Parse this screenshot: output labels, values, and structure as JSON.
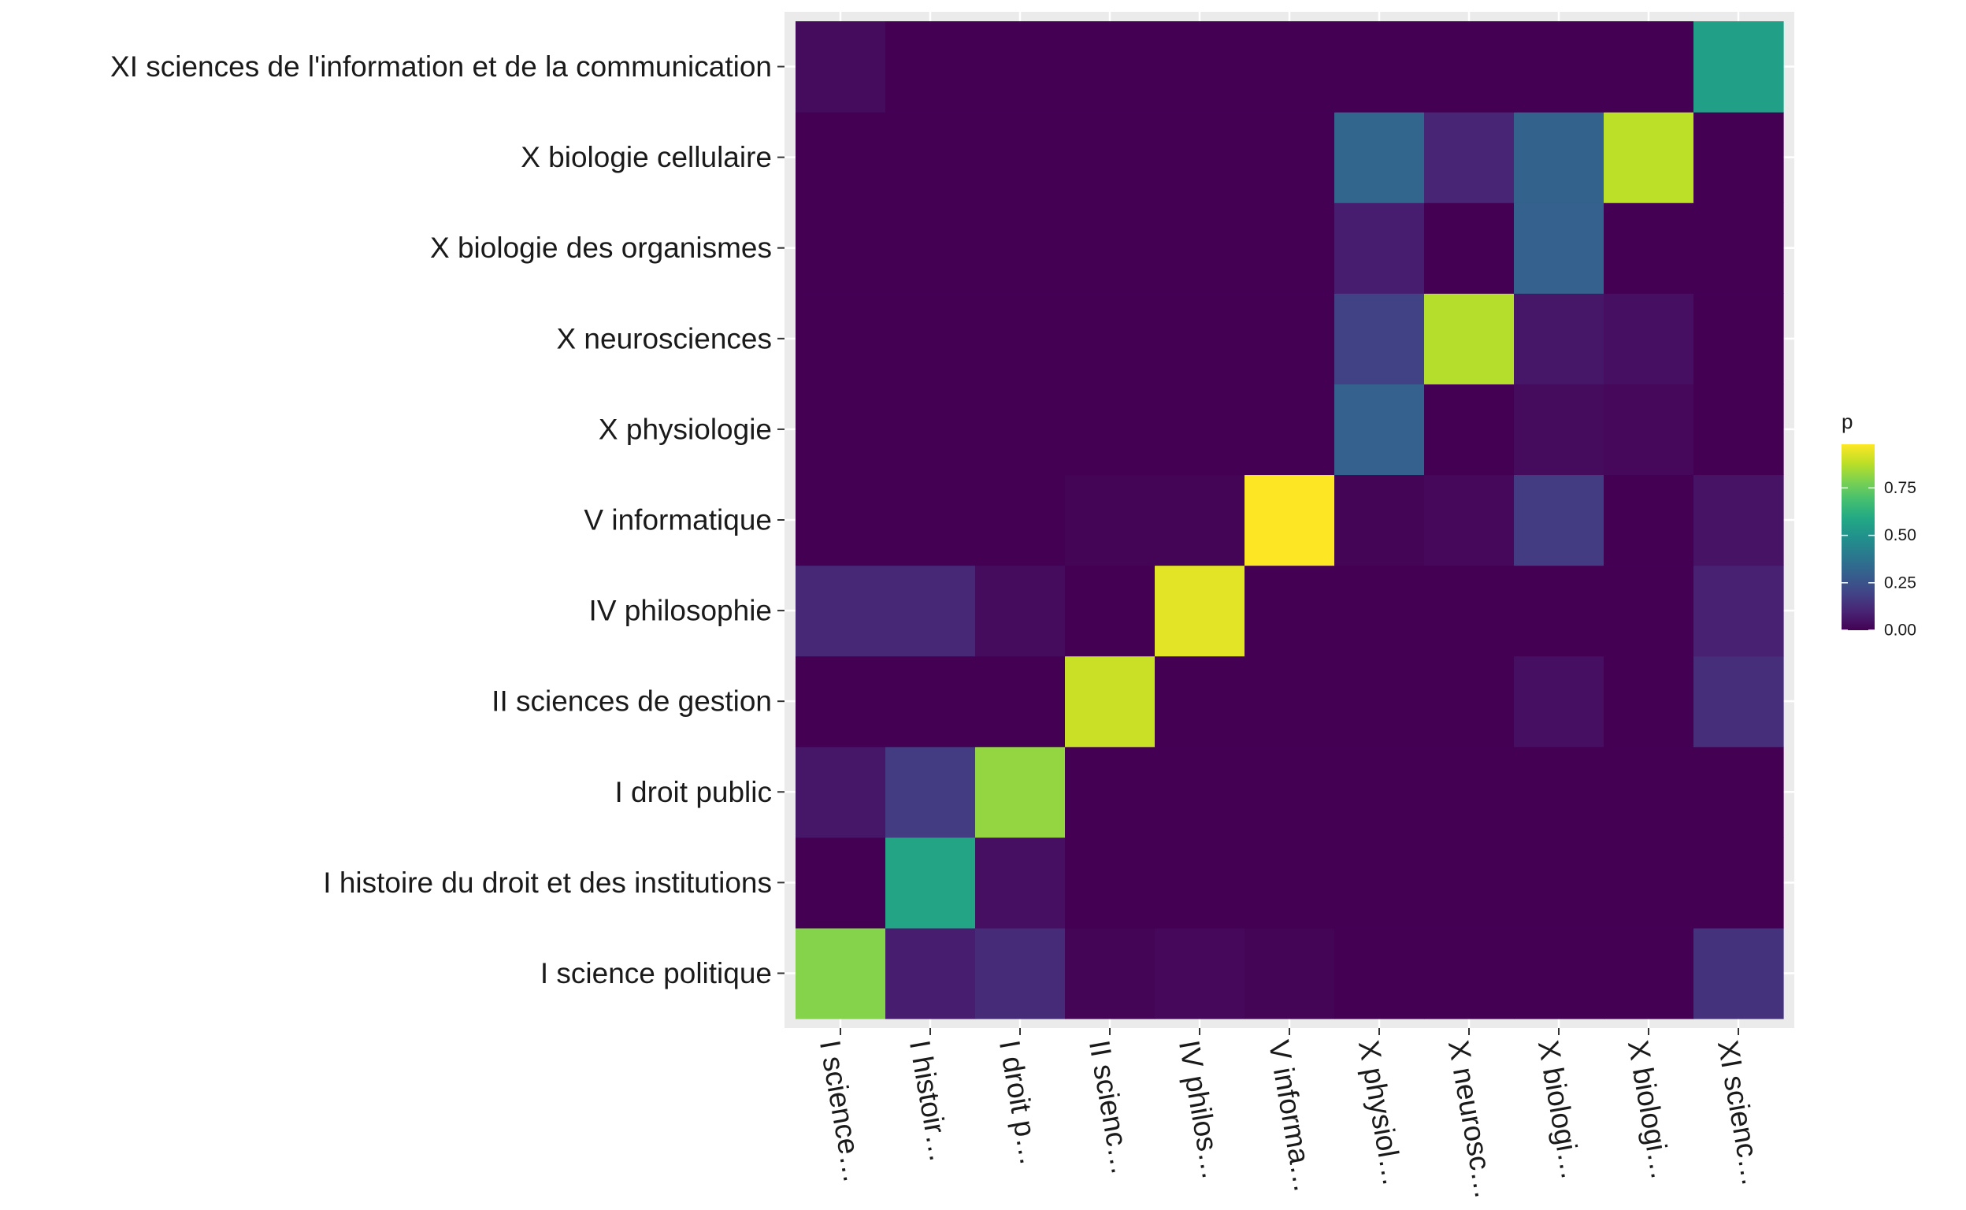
{
  "chart_data": {
    "type": "heatmap",
    "x_tick_labels": [
      "I science…",
      "I histoir…",
      "I droit p…",
      "II scienc…",
      "IV philos…",
      "V informa…",
      "X physiol…",
      "X neurosc…",
      "X biologi…",
      "X biologi…",
      "XI scienc…"
    ],
    "y_tick_labels": [
      "I science politique",
      "I histoire du droit et des institutions",
      "I droit public",
      "II sciences de gestion",
      "IV philosophie",
      "V informatique",
      "X physiologie",
      "X neurosciences",
      "X biologie des organismes",
      "X biologie cellulaire",
      "XI sciences de l'information et de la communication"
    ],
    "values": [
      [
        0.8,
        0.08,
        0.12,
        0.01,
        0.02,
        0.01,
        0.0,
        0.0,
        0.0,
        0.0,
        0.14
      ],
      [
        0.0,
        0.57,
        0.04,
        0.0,
        0.0,
        0.0,
        0.0,
        0.0,
        0.0,
        0.0,
        0.0
      ],
      [
        0.06,
        0.17,
        0.82,
        0.0,
        0.0,
        0.0,
        0.0,
        0.0,
        0.0,
        0.0,
        0.0
      ],
      [
        0.0,
        0.0,
        0.0,
        0.9,
        0.0,
        0.0,
        0.0,
        0.0,
        0.04,
        0.0,
        0.13
      ],
      [
        0.11,
        0.11,
        0.03,
        0.0,
        0.94,
        0.0,
        0.0,
        0.0,
        0.0,
        0.0,
        0.09
      ],
      [
        0.0,
        0.0,
        0.0,
        0.01,
        0.01,
        0.98,
        0.01,
        0.02,
        0.17,
        0.0,
        0.05
      ],
      [
        0.0,
        0.0,
        0.0,
        0.0,
        0.0,
        0.0,
        0.3,
        0.0,
        0.03,
        0.02,
        0.0
      ],
      [
        0.0,
        0.0,
        0.0,
        0.0,
        0.0,
        0.0,
        0.19,
        0.87,
        0.06,
        0.04,
        0.0
      ],
      [
        0.0,
        0.0,
        0.0,
        0.0,
        0.0,
        0.0,
        0.08,
        0.0,
        0.3,
        0.0,
        0.0
      ],
      [
        0.0,
        0.0,
        0.0,
        0.0,
        0.0,
        0.0,
        0.32,
        0.1,
        0.31,
        0.88,
        0.0
      ],
      [
        0.03,
        0.0,
        0.0,
        0.0,
        0.0,
        0.0,
        0.0,
        0.0,
        0.0,
        0.0,
        0.55
      ]
    ],
    "color_scale": "viridis",
    "legend": {
      "title": "p",
      "ticks": [
        0.0,
        0.25,
        0.5,
        0.75
      ],
      "tick_labels": [
        "0.00",
        "0.25",
        "0.50",
        "0.75"
      ],
      "range": [
        0,
        0.98
      ],
      "placement": "right"
    },
    "panel_background": "#ebebeb",
    "grid": true
  }
}
